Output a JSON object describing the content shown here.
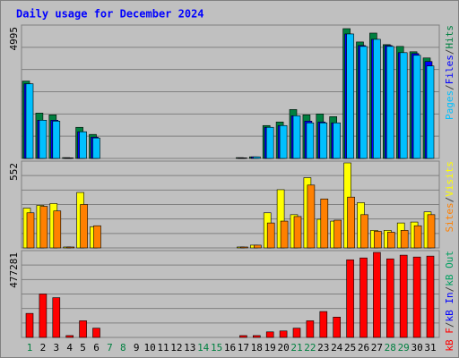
{
  "title": "Daily usage for December 2024",
  "legend_separator": "/",
  "categories": [
    "1",
    "2",
    "3",
    "4",
    "5",
    "6",
    "7",
    "8",
    "9",
    "10",
    "11",
    "12",
    "13",
    "14",
    "15",
    "16",
    "17",
    "18",
    "19",
    "20",
    "21",
    "22",
    "23",
    "24",
    "25",
    "26",
    "27",
    "28",
    "29",
    "30",
    "31"
  ],
  "x_label_colors": [
    "#008040",
    "#000000",
    "#000000",
    "#000000",
    "#000000",
    "#000000",
    "#008040",
    "#008040",
    "#000000",
    "#000000",
    "#000000",
    "#000000",
    "#000000",
    "#008040",
    "#008040",
    "#000000",
    "#000000",
    "#000000",
    "#000000",
    "#000000",
    "#008040",
    "#008040",
    "#000000",
    "#000000",
    "#000000",
    "#000000",
    "#000000",
    "#008040",
    "#008040",
    "#000000",
    "#000000"
  ],
  "chart_data": [
    {
      "type": "bar",
      "ylim": [
        0,
        4995
      ],
      "yticks": [
        4995
      ],
      "series": [
        {
          "name": "Hits",
          "color": "#008040",
          "values": [
            2936,
            1721,
            1654,
            30,
            1181,
            911,
            0,
            0,
            0,
            0,
            0,
            0,
            0,
            0,
            0,
            0,
            30,
            60,
            1248,
            1384,
            1856,
            1654,
            1687,
            1586,
            4927,
            4421,
            4758,
            4320,
            4252,
            4050,
            3814
          ]
        },
        {
          "name": "Files",
          "color": "#0000ff",
          "values": [
            2835,
            1451,
            1451,
            20,
            1012,
            810,
            0,
            0,
            0,
            0,
            0,
            0,
            0,
            0,
            0,
            0,
            20,
            60,
            1181,
            1248,
            1620,
            1417,
            1384,
            1350,
            4725,
            4286,
            4522,
            4286,
            4016,
            3982,
            3679
          ]
        },
        {
          "name": "Pages",
          "color": "#00c0ff",
          "values": [
            2835,
            1451,
            1417,
            20,
            1012,
            776,
            0,
            0,
            0,
            0,
            0,
            0,
            0,
            0,
            0,
            0,
            20,
            60,
            1181,
            1248,
            1620,
            1350,
            1350,
            1350,
            4725,
            4252,
            4522,
            4252,
            4016,
            3915,
            3510
          ]
        }
      ]
    },
    {
      "type": "bar",
      "ylim": [
        0,
        552
      ],
      "yticks": [
        552
      ],
      "series": [
        {
          "name": "Visits",
          "color": "#ffff00",
          "values": [
            258,
            276,
            288,
            6,
            360,
            138,
            0,
            0,
            0,
            0,
            0,
            0,
            0,
            0,
            0,
            0,
            6,
            18,
            228,
            378,
            216,
            456,
            186,
            174,
            552,
            294,
            114,
            114,
            162,
            168,
            234
          ]
        },
        {
          "name": "Sites",
          "color": "#ff8000",
          "values": [
            228,
            270,
            240,
            6,
            282,
            144,
            0,
            0,
            0,
            0,
            0,
            0,
            0,
            0,
            0,
            0,
            6,
            18,
            162,
            174,
            204,
            408,
            318,
            180,
            330,
            216,
            108,
            102,
            114,
            144,
            216
          ]
        }
      ]
    },
    {
      "type": "bar",
      "ylim": [
        0,
        477281
      ],
      "yticks": [
        477281
      ],
      "series": [
        {
          "name": "kB Out",
          "color": "#00a060",
          "values": [
            0,
            0,
            0,
            0,
            0,
            0,
            0,
            0,
            0,
            0,
            0,
            0,
            0,
            0,
            0,
            0,
            0,
            0,
            0,
            0,
            0,
            0,
            0,
            0,
            0,
            0,
            0,
            0,
            0,
            0,
            0
          ]
        },
        {
          "name": "kB In",
          "color": "#0000ff",
          "values": [
            0,
            0,
            0,
            0,
            0,
            0,
            0,
            0,
            0,
            0,
            0,
            0,
            0,
            0,
            0,
            0,
            0,
            0,
            0,
            0,
            0,
            0,
            0,
            0,
            0,
            0,
            0,
            0,
            0,
            0,
            0
          ]
        },
        {
          "name": "kB F",
          "color": "#ff0000",
          "values": [
            134880,
            243800,
            223100,
            10400,
            93400,
            51900,
            0,
            0,
            0,
            0,
            0,
            0,
            0,
            0,
            0,
            0,
            10400,
            10400,
            31100,
            36300,
            51900,
            93400,
            145300,
            114100,
            435800,
            446200,
            477281,
            441000,
            461700,
            451300,
            456500
          ]
        }
      ]
    }
  ]
}
